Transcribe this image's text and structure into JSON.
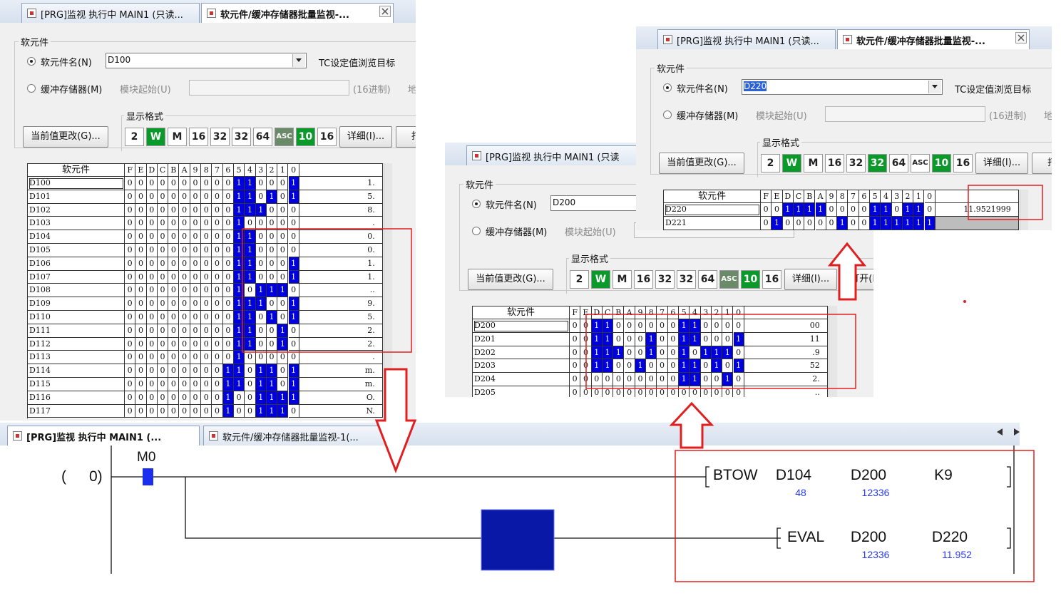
{
  "windows": [
    {
      "tabs": [
        "[PRG]监视 执行中 MAIN1 (只读...",
        "软元件/缓冲存储器批量监视-..."
      ],
      "group": "软元件",
      "radio_device": "软元件名(N)",
      "device": "D100",
      "tc_label": "TC设定值浏览目标",
      "radio_buffer": "缓冲存储器(M)",
      "module_start": "模块起始(U)",
      "hex": "(16进制)",
      "addr": "地",
      "format_group": "显示格式",
      "change_button": "当前值更改(G)...",
      "format_buttons": [
        {
          "label": "2",
          "color": "#ffffff"
        },
        {
          "label": "W",
          "color": "#0a9a2a"
        },
        {
          "label": "M",
          "color": "#ffffff"
        },
        {
          "label": "16",
          "color": "#ffffff"
        },
        {
          "label": "32",
          "color": "#ffffff"
        },
        {
          "label": "32",
          "color": "#ffffff"
        },
        {
          "label": "64",
          "color": "#ffffff"
        },
        {
          "label": "ASC",
          "color": "#6a8a6a"
        },
        {
          "label": "10",
          "color": "#0a9a2a"
        },
        {
          "label": "16",
          "color": "#ffffff"
        }
      ],
      "detail_button": "详细(I)...",
      "open_button": "打开",
      "table": {
        "header": "软元件",
        "bit_headers": [
          "F",
          "E",
          "D",
          "C",
          "B",
          "A",
          "9",
          "8",
          "7",
          "6",
          "5",
          "4",
          "3",
          "2",
          "1",
          "0"
        ],
        "rows": [
          {
            "device": "D100",
            "bits": [
              0,
              0,
              0,
              0,
              0,
              0,
              0,
              0,
              0,
              0,
              1,
              1,
              0,
              0,
              0,
              1
            ],
            "value": "1."
          },
          {
            "device": "D101",
            "bits": [
              0,
              0,
              0,
              0,
              0,
              0,
              0,
              0,
              0,
              0,
              1,
              1,
              0,
              1,
              0,
              1
            ],
            "value": "5."
          },
          {
            "device": "D102",
            "bits": [
              0,
              0,
              0,
              0,
              0,
              0,
              0,
              0,
              0,
              0,
              1,
              1,
              1,
              0,
              0,
              0
            ],
            "value": "8."
          },
          {
            "device": "D103",
            "bits": [
              0,
              0,
              0,
              0,
              0,
              0,
              0,
              0,
              0,
              0,
              1,
              0,
              0,
              0,
              0,
              0
            ],
            "value": "."
          },
          {
            "device": "D104",
            "bits": [
              0,
              0,
              0,
              0,
              0,
              0,
              0,
              0,
              0,
              0,
              1,
              1,
              0,
              0,
              0,
              0
            ],
            "value": "0."
          },
          {
            "device": "D105",
            "bits": [
              0,
              0,
              0,
              0,
              0,
              0,
              0,
              0,
              0,
              0,
              1,
              1,
              0,
              0,
              0,
              0
            ],
            "value": "0."
          },
          {
            "device": "D106",
            "bits": [
              0,
              0,
              0,
              0,
              0,
              0,
              0,
              0,
              0,
              0,
              1,
              1,
              0,
              0,
              0,
              1
            ],
            "value": "1."
          },
          {
            "device": "D107",
            "bits": [
              0,
              0,
              0,
              0,
              0,
              0,
              0,
              0,
              0,
              0,
              1,
              1,
              0,
              0,
              0,
              1
            ],
            "value": "1."
          },
          {
            "device": "D108",
            "bits": [
              0,
              0,
              0,
              0,
              0,
              0,
              0,
              0,
              0,
              0,
              1,
              0,
              1,
              1,
              1,
              0
            ],
            "value": ".."
          },
          {
            "device": "D109",
            "bits": [
              0,
              0,
              0,
              0,
              0,
              0,
              0,
              0,
              0,
              0,
              1,
              1,
              1,
              0,
              0,
              1
            ],
            "value": "9."
          },
          {
            "device": "D110",
            "bits": [
              0,
              0,
              0,
              0,
              0,
              0,
              0,
              0,
              0,
              0,
              1,
              1,
              0,
              1,
              0,
              1
            ],
            "value": "5."
          },
          {
            "device": "D111",
            "bits": [
              0,
              0,
              0,
              0,
              0,
              0,
              0,
              0,
              0,
              0,
              1,
              1,
              0,
              0,
              1,
              0
            ],
            "value": "2."
          },
          {
            "device": "D112",
            "bits": [
              0,
              0,
              0,
              0,
              0,
              0,
              0,
              0,
              0,
              0,
              1,
              1,
              0,
              0,
              1,
              0
            ],
            "value": "2."
          },
          {
            "device": "D113",
            "bits": [
              0,
              0,
              0,
              0,
              0,
              0,
              0,
              0,
              0,
              0,
              1,
              0,
              0,
              0,
              0,
              0
            ],
            "value": "."
          },
          {
            "device": "D114",
            "bits": [
              0,
              0,
              0,
              0,
              0,
              0,
              0,
              0,
              0,
              1,
              1,
              0,
              1,
              1,
              0,
              1
            ],
            "value": "m."
          },
          {
            "device": "D115",
            "bits": [
              0,
              0,
              0,
              0,
              0,
              0,
              0,
              0,
              0,
              1,
              1,
              0,
              1,
              1,
              0,
              1
            ],
            "value": "m."
          },
          {
            "device": "D116",
            "bits": [
              0,
              0,
              0,
              0,
              0,
              0,
              0,
              0,
              0,
              1,
              0,
              0,
              1,
              1,
              1,
              1
            ],
            "value": "O."
          },
          {
            "device": "D117",
            "bits": [
              0,
              0,
              0,
              0,
              0,
              0,
              0,
              0,
              0,
              1,
              0,
              0,
              1,
              1,
              1,
              0
            ],
            "value": "N."
          }
        ]
      }
    },
    {
      "tabs": [
        "[PRG]监视 执行中 MAIN1 (只读"
      ],
      "group": "软元件",
      "radio_device": "软元件名(N)",
      "device": "D200",
      "radio_buffer": "缓冲存储器(M)",
      "module_start": "模块起始(U)",
      "format_group": "显示格式",
      "change_button": "当前值更改(G)...",
      "format_buttons": [
        {
          "label": "2",
          "color": "#ffffff"
        },
        {
          "label": "W",
          "color": "#0a9a2a"
        },
        {
          "label": "M",
          "color": "#ffffff"
        },
        {
          "label": "16",
          "color": "#ffffff"
        },
        {
          "label": "32",
          "color": "#ffffff"
        },
        {
          "label": "32",
          "color": "#ffffff"
        },
        {
          "label": "64",
          "color": "#ffffff"
        },
        {
          "label": "ASC",
          "color": "#6a8a6a"
        },
        {
          "label": "10",
          "color": "#0a9a2a"
        },
        {
          "label": "16",
          "color": "#ffffff"
        }
      ],
      "detail_button": "详细(I)...",
      "open_button": "打开(L)",
      "table": {
        "header": "软元件",
        "bit_headers": [
          "F",
          "E",
          "D",
          "C",
          "B",
          "A",
          "9",
          "8",
          "7",
          "6",
          "5",
          "4",
          "3",
          "2",
          "1",
          "0"
        ],
        "rows": [
          {
            "device": "D200",
            "bits": [
              0,
              0,
              1,
              1,
              0,
              0,
              0,
              0,
              0,
              0,
              1,
              1,
              0,
              0,
              0,
              0
            ],
            "value": "00"
          },
          {
            "device": "D201",
            "bits": [
              0,
              0,
              1,
              1,
              0,
              0,
              0,
              1,
              0,
              0,
              1,
              1,
              0,
              0,
              0,
              1
            ],
            "value": "11"
          },
          {
            "device": "D202",
            "bits": [
              0,
              0,
              1,
              1,
              1,
              0,
              0,
              1,
              0,
              0,
              1,
              0,
              1,
              1,
              1,
              0
            ],
            "value": ".9"
          },
          {
            "device": "D203",
            "bits": [
              0,
              0,
              1,
              1,
              0,
              0,
              1,
              0,
              0,
              0,
              1,
              1,
              0,
              1,
              0,
              1
            ],
            "value": "52"
          },
          {
            "device": "D204",
            "bits": [
              0,
              0,
              0,
              0,
              0,
              0,
              0,
              0,
              0,
              0,
              1,
              1,
              0,
              0,
              1,
              0
            ],
            "value": "2."
          },
          {
            "device": "D205",
            "bits": [
              0,
              0,
              0,
              0,
              0,
              0,
              0,
              0,
              0,
              0,
              0,
              0,
              0,
              0,
              0,
              0
            ],
            "value": ".."
          }
        ]
      }
    },
    {
      "tabs": [
        "[PRG]监视 执行中 MAIN1 (只读...",
        "软元件/缓冲存储器批量监视-..."
      ],
      "group": "软元件",
      "radio_device": "软元件名(N)",
      "device": "D220",
      "tc_label": "TC设定值浏览目标",
      "radio_buffer": "缓冲存储器(M)",
      "module_start": "模块起始(U)",
      "hex": "(16进制)",
      "addr": "地址",
      "format_group": "显示格式",
      "change_button": "当前值更改(G)...",
      "format_buttons": [
        {
          "label": "2",
          "color": "#ffffff"
        },
        {
          "label": "W",
          "color": "#0a9a2a"
        },
        {
          "label": "M",
          "color": "#ffffff"
        },
        {
          "label": "16",
          "color": "#ffffff"
        },
        {
          "label": "32",
          "color": "#ffffff"
        },
        {
          "label": "32",
          "color": "#0a9a2a"
        },
        {
          "label": "64",
          "color": "#ffffff"
        },
        {
          "label": "ASC",
          "color": "#ffffff"
        },
        {
          "label": "10",
          "color": "#0a9a2a"
        },
        {
          "label": "16",
          "color": "#ffffff"
        }
      ],
      "detail_button": "详细(I)...",
      "open_button": "打开",
      "table": {
        "header": "软元件",
        "bit_headers": [
          "F",
          "E",
          "D",
          "C",
          "B",
          "A",
          "9",
          "8",
          "7",
          "6",
          "5",
          "4",
          "3",
          "2",
          "1",
          "0"
        ],
        "rows": [
          {
            "device": "D220",
            "bits": [
              0,
              0,
              1,
              1,
              1,
              1,
              0,
              0,
              0,
              0,
              1,
              1,
              0,
              1,
              1,
              0
            ],
            "value": "11.9521999"
          },
          {
            "device": "D221",
            "bits": [
              0,
              1,
              0,
              0,
              0,
              0,
              0,
              1,
              0,
              0,
              1,
              1,
              1,
              1,
              1,
              1
            ],
            "value": null
          }
        ]
      }
    }
  ],
  "ladder": {
    "tabs": [
      "[PRG]监视 执行中 MAIN1 (...",
      "软元件/缓冲存储器批量监视-1(..."
    ],
    "step_open": "(",
    "step": "0)",
    "contact": "M0",
    "rungs": [
      {
        "instruction": "BTOW",
        "operands": [
          {
            "name": "D104",
            "monitor": 48
          },
          {
            "name": "D200",
            "monitor": 12336
          },
          {
            "name": "K9",
            "monitor": null
          }
        ]
      },
      {
        "instruction": "EVAL",
        "operands": [
          {
            "name": "D200",
            "monitor": 12336
          },
          {
            "name": "D220",
            "monitor": 11.952
          }
        ]
      }
    ]
  }
}
